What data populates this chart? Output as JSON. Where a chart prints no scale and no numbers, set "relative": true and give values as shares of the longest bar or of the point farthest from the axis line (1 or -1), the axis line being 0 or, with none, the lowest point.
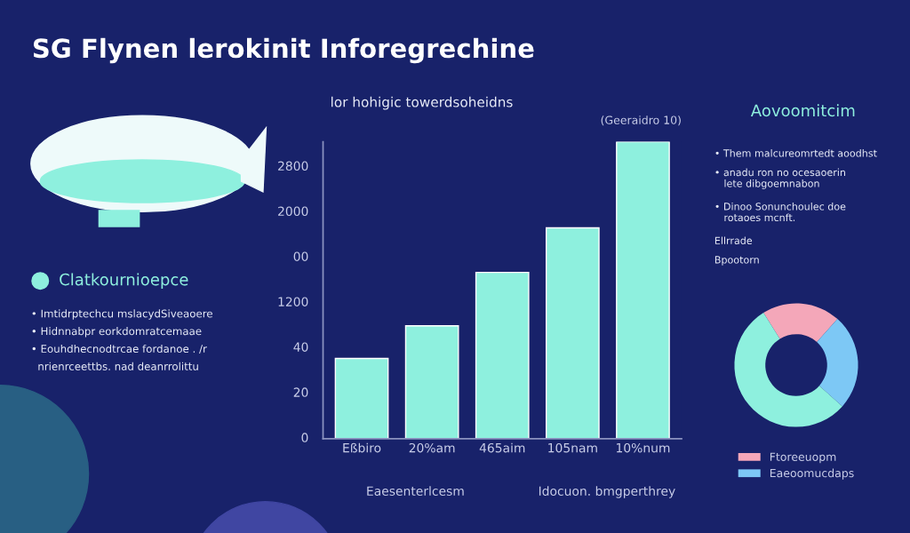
{
  "chart_data": [
    {
      "type": "other",
      "title": "SG Flynen lerokinit Inforegrechine",
      "subtitle": "Clatkournioepce",
      "annotations": [
        "• Imtidrptechcu mslacydSiveaoere",
        "• Hidnnabpr eorkdomratcemaae",
        "• Eouhdhecnodtrcae fordanoe . /r",
        "  nrienrceettbs. nad deanrrolittu"
      ]
    },
    {
      "type": "bar",
      "title": "lor hohigic towerdsoheidns",
      "categories": [
        "Eßbiro",
        "20%am",
        "465aim",
        "105nam",
        "10%num"
      ],
      "values": [
        0.27,
        0.38,
        0.56,
        0.71,
        1.0
      ],
      "color": "#8ef0de",
      "relative": true,
      "annotations": [
        "2800",
        "2000",
        "00",
        "1200",
        "40",
        "20",
        "0",
        "(Geeraidro 10)",
        "Eaesenterlcesm",
        "Idocuon. bmgperthrey"
      ]
    },
    {
      "type": "donut",
      "title": "Aovoomitcim",
      "categories": [
        "Ftoreeuopm",
        "Eaeoomucdaps",
        null
      ],
      "values": [
        20.5,
        25,
        54.5
      ],
      "colors": [
        "#f4a7b9",
        "#7dc8f5",
        "#8ef0de"
      ],
      "legend": "bottom",
      "annotations": [
        "• Them malcureomrtedt aoodhst",
        "• anadu ron no ocesaoerin\n   lete dibgoemnabon",
        "• Dinoo Sonunchoulec doe\n   rotaoes mcnft.",
        "Ellrrade",
        "Bpootorn"
      ]
    }
  ]
}
